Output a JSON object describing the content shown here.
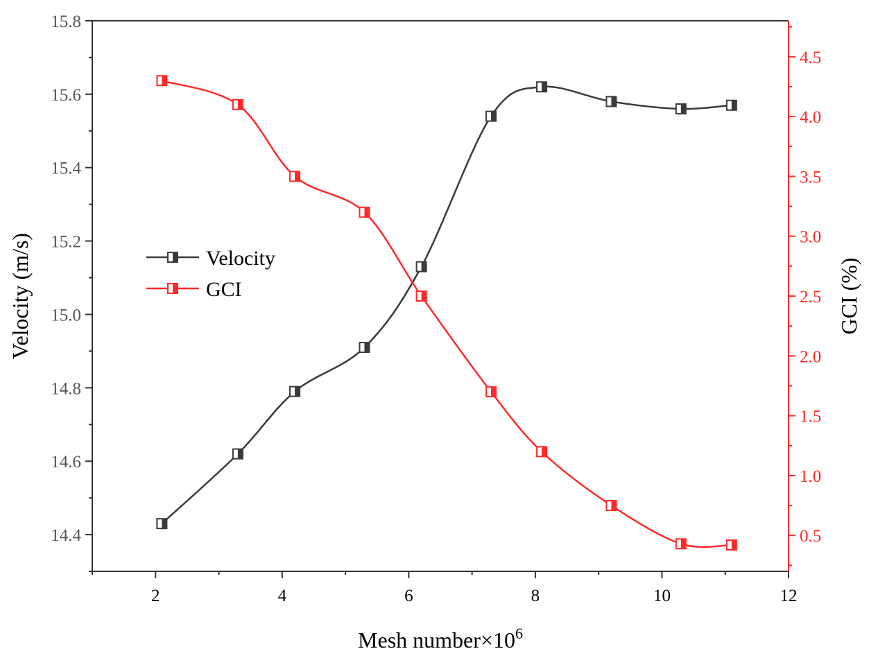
{
  "chart_data": {
    "type": "line",
    "title": "",
    "xlabel": "Mesh number×10",
    "xlabel_superscript": "6",
    "ylabel_left": "Velocity (m/s)",
    "ylabel_right": "GCI (%)",
    "xlim": [
      1,
      12
    ],
    "ylim_left": [
      14.3,
      15.8
    ],
    "ylim_right": [
      0.2,
      4.8
    ],
    "x_ticks": [
      2,
      4,
      6,
      8,
      10,
      12
    ],
    "x_tick_labels": [
      "2",
      "4",
      "6",
      "8",
      "10",
      "12"
    ],
    "y_left_ticks": [
      14.4,
      14.6,
      14.8,
      15.0,
      15.2,
      15.4,
      15.6,
      15.8
    ],
    "y_left_tick_labels": [
      "14.4",
      "14.6",
      "14.8",
      "15.0",
      "15.2",
      "15.4",
      "15.6",
      "15.8"
    ],
    "y_right_ticks": [
      0.5,
      1.0,
      1.5,
      2.0,
      2.5,
      3.0,
      3.5,
      4.0,
      4.5
    ],
    "y_right_tick_labels": [
      "0.5",
      "1.0",
      "1.5",
      "2.0",
      "2.5",
      "3.0",
      "3.5",
      "4.0",
      "4.5"
    ],
    "legend_position": "middle-left",
    "series": [
      {
        "name": "Velocity",
        "axis": "left",
        "color": "#3a3a3a",
        "x": [
          2.1,
          3.3,
          4.2,
          5.3,
          6.2,
          7.3,
          8.1,
          9.2,
          10.3,
          11.1
        ],
        "values": [
          14.43,
          14.62,
          14.79,
          14.91,
          15.13,
          15.54,
          15.62,
          15.58,
          15.56,
          15.57
        ]
      },
      {
        "name": "GCI",
        "axis": "right",
        "color": "#ff2a2a",
        "x": [
          2.1,
          3.3,
          4.2,
          5.3,
          6.2,
          7.3,
          8.1,
          9.2,
          10.3,
          11.1
        ],
        "values": [
          4.3,
          4.1,
          3.5,
          3.2,
          2.5,
          1.7,
          1.2,
          0.75,
          0.43,
          0.42
        ]
      }
    ]
  }
}
